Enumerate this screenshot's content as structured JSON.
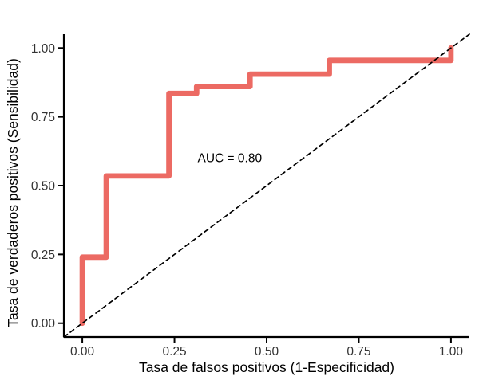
{
  "page": {
    "background": "#ffffff"
  },
  "chart_data": {
    "type": "line",
    "subtype": "roc_step_curve",
    "title": "",
    "xlabel": "Tasa de falsos positivos (1-Especificidad)",
    "ylabel": "Tasa de verdaderos positivos (Sensibilidad)",
    "xlim": [
      -0.05,
      1.05
    ],
    "ylim": [
      -0.05,
      1.05
    ],
    "grid": false,
    "legend": "none",
    "x_ticks": {
      "values": [
        0,
        0.25,
        0.5,
        0.75,
        1
      ],
      "labels": [
        "0.00",
        "0.25",
        "0.50",
        "0.75",
        "1.00"
      ]
    },
    "y_ticks": {
      "values": [
        0,
        0.25,
        0.5,
        0.75,
        1
      ],
      "labels": [
        "0.00",
        "0.25",
        "0.50",
        "0.75",
        "1.00"
      ]
    },
    "series": [
      {
        "name": "roc_curve",
        "color": "#EC6A63",
        "stroke_width": 6.8,
        "dash": "solid",
        "points": [
          [
            0,
            0
          ],
          [
            0,
            0.24
          ],
          [
            0.065,
            0.24
          ],
          [
            0.065,
            0.535
          ],
          [
            0.235,
            0.535
          ],
          [
            0.235,
            0.835
          ],
          [
            0.31,
            0.835
          ],
          [
            0.31,
            0.86
          ],
          [
            0.455,
            0.86
          ],
          [
            0.455,
            0.905
          ],
          [
            0.67,
            0.905
          ],
          [
            0.67,
            0.955
          ],
          [
            1,
            0.955
          ],
          [
            1,
            1
          ]
        ]
      },
      {
        "name": "chance_diagonal",
        "color": "#000000",
        "stroke_width": 1.7,
        "dash": "5.5 4.5",
        "points": [
          [
            -0.05,
            -0.05
          ],
          [
            1.05,
            1.05
          ]
        ]
      }
    ],
    "annotations": [
      {
        "text": "AUC = 0.80",
        "x": 0.4,
        "y": 0.6
      }
    ],
    "axis_style": {
      "line_color": "#000000",
      "line_width": 2.2,
      "tick_length": 6,
      "tick_width": 2,
      "tick_label_color": "#333333",
      "title_color": "#000000"
    }
  }
}
